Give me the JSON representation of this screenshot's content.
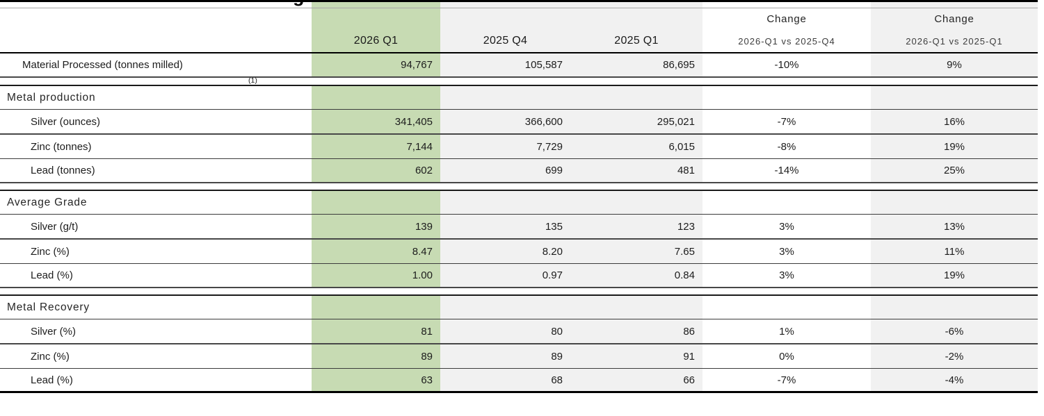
{
  "title_fragment": "g",
  "footnote_marker": "(1)",
  "colors": {
    "highlight_green": "#c7dbb3",
    "column_gray": "#f1f1f1"
  },
  "header": {
    "columns": [
      {
        "label": ""
      },
      {
        "label": "2026 Q1",
        "highlight": "green"
      },
      {
        "label": "2025 Q4"
      },
      {
        "label": "2025 Q1"
      },
      {
        "label": "Change",
        "sublabel": "2026-Q1 vs 2025-Q4"
      },
      {
        "label": "Change",
        "sublabel": "2026-Q1 vs 2025-Q1"
      }
    ]
  },
  "rows": [
    {
      "type": "data",
      "label": "Material Processed (tonnes milled)",
      "values": [
        "94,767",
        "105,587",
        "86,695",
        "-10%",
        "9%"
      ]
    },
    {
      "type": "section",
      "label": "Metal production"
    },
    {
      "type": "data",
      "label": "Silver (ounces)",
      "values": [
        "341,405",
        "366,600",
        "295,021",
        "-7%",
        "16%"
      ]
    },
    {
      "type": "data",
      "label": "Zinc (tonnes)",
      "values": [
        "7,144",
        "7,729",
        "6,015",
        "-8%",
        "19%"
      ]
    },
    {
      "type": "data",
      "label": "Lead (tonnes)",
      "values": [
        "602",
        "699",
        "481",
        "-14%",
        "25%"
      ]
    },
    {
      "type": "section",
      "label": "Average Grade"
    },
    {
      "type": "data",
      "label": "Silver (g/t)",
      "values": [
        "139",
        "135",
        "123",
        "3%",
        "13%"
      ]
    },
    {
      "type": "data",
      "label": "Zinc (%)",
      "values": [
        "8.47",
        "8.20",
        "7.65",
        "3%",
        "11%"
      ]
    },
    {
      "type": "data",
      "label": "Lead (%)",
      "values": [
        "1.00",
        "0.97",
        "0.84",
        "3%",
        "19%"
      ]
    },
    {
      "type": "section",
      "label": "Metal Recovery"
    },
    {
      "type": "data",
      "label": "Silver (%)",
      "values": [
        "81",
        "80",
        "86",
        "1%",
        "-6%"
      ]
    },
    {
      "type": "data",
      "label": "Zinc (%)",
      "values": [
        "89",
        "89",
        "91",
        "0%",
        "-2%"
      ]
    },
    {
      "type": "data",
      "label": "Lead (%)",
      "values": [
        "63",
        "68",
        "66",
        "-7%",
        "-4%"
      ]
    }
  ]
}
